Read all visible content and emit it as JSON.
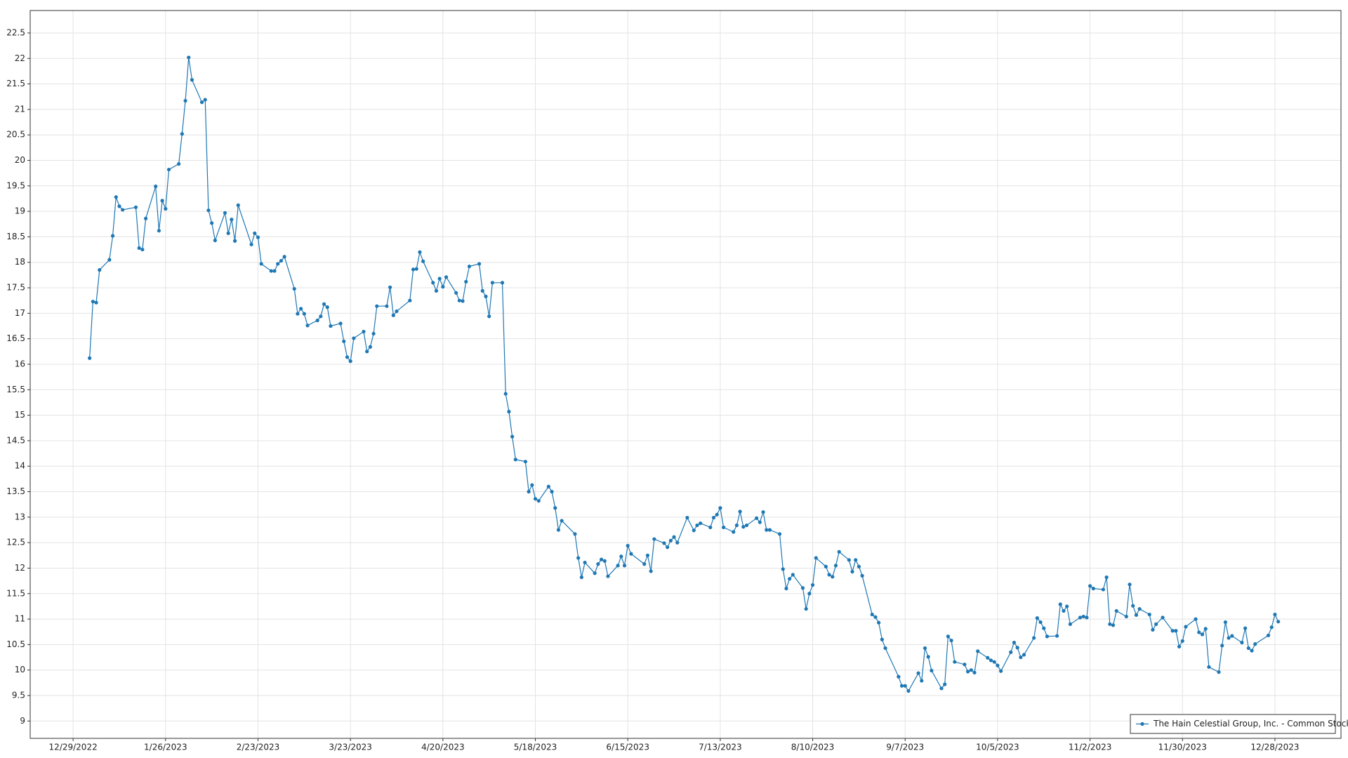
{
  "chart_data": {
    "type": "line",
    "x": [
      "1/3/2023",
      "1/4/2023",
      "1/5/2023",
      "1/6/2023",
      "1/9/2023",
      "1/10/2023",
      "1/11/2023",
      "1/12/2023",
      "1/13/2023",
      "1/17/2023",
      "1/18/2023",
      "1/19/2023",
      "1/20/2023",
      "1/23/2023",
      "1/24/2023",
      "1/25/2023",
      "1/26/2023",
      "1/27/2023",
      "1/30/2023",
      "1/31/2023",
      "2/1/2023",
      "2/2/2023",
      "2/3/2023",
      "2/6/2023",
      "2/7/2023",
      "2/8/2023",
      "2/9/2023",
      "2/10/2023",
      "2/13/2023",
      "2/14/2023",
      "2/15/2023",
      "2/16/2023",
      "2/17/2023",
      "2/21/2023",
      "2/22/2023",
      "2/23/2023",
      "2/24/2023",
      "2/27/2023",
      "2/28/2023",
      "3/1/2023",
      "3/2/2023",
      "3/3/2023",
      "3/6/2023",
      "3/7/2023",
      "3/8/2023",
      "3/9/2023",
      "3/10/2023",
      "3/13/2023",
      "3/14/2023",
      "3/15/2023",
      "3/16/2023",
      "3/17/2023",
      "3/20/2023",
      "3/21/2023",
      "3/22/2023",
      "3/23/2023",
      "3/24/2023",
      "3/27/2023",
      "3/28/2023",
      "3/29/2023",
      "3/30/2023",
      "3/31/2023",
      "4/3/2023",
      "4/4/2023",
      "4/5/2023",
      "4/6/2023",
      "4/10/2023",
      "4/11/2023",
      "4/12/2023",
      "4/13/2023",
      "4/14/2023",
      "4/17/2023",
      "4/18/2023",
      "4/19/2023",
      "4/20/2023",
      "4/21/2023",
      "4/24/2023",
      "4/25/2023",
      "4/26/2023",
      "4/27/2023",
      "4/28/2023",
      "5/1/2023",
      "5/2/2023",
      "5/3/2023",
      "5/4/2023",
      "5/5/2023",
      "5/8/2023",
      "5/9/2023",
      "5/10/2023",
      "5/11/2023",
      "5/12/2023",
      "5/15/2023",
      "5/16/2023",
      "5/17/2023",
      "5/18/2023",
      "5/19/2023",
      "5/22/2023",
      "5/23/2023",
      "5/24/2023",
      "5/25/2023",
      "5/26/2023",
      "5/30/2023",
      "5/31/2023",
      "6/1/2023",
      "6/2/2023",
      "6/5/2023",
      "6/6/2023",
      "6/7/2023",
      "6/8/2023",
      "6/9/2023",
      "6/12/2023",
      "6/13/2023",
      "6/14/2023",
      "6/15/2023",
      "6/16/2023",
      "6/20/2023",
      "6/21/2023",
      "6/22/2023",
      "6/23/2023",
      "6/26/2023",
      "6/27/2023",
      "6/28/2023",
      "6/29/2023",
      "6/30/2023",
      "7/3/2023",
      "7/5/2023",
      "7/6/2023",
      "7/7/2023",
      "7/10/2023",
      "7/11/2023",
      "7/12/2023",
      "7/13/2023",
      "7/14/2023",
      "7/17/2023",
      "7/18/2023",
      "7/19/2023",
      "7/20/2023",
      "7/21/2023",
      "7/24/2023",
      "7/25/2023",
      "7/26/2023",
      "7/27/2023",
      "7/28/2023",
      "7/31/2023",
      "8/1/2023",
      "8/2/2023",
      "8/3/2023",
      "8/4/2023",
      "8/7/2023",
      "8/8/2023",
      "8/9/2023",
      "8/10/2023",
      "8/11/2023",
      "8/14/2023",
      "8/15/2023",
      "8/16/2023",
      "8/17/2023",
      "8/18/2023",
      "8/21/2023",
      "8/22/2023",
      "8/23/2023",
      "8/24/2023",
      "8/25/2023",
      "8/28/2023",
      "8/29/2023",
      "8/30/2023",
      "8/31/2023",
      "9/1/2023",
      "9/5/2023",
      "9/6/2023",
      "9/7/2023",
      "9/8/2023",
      "9/11/2023",
      "9/12/2023",
      "9/13/2023",
      "9/14/2023",
      "9/15/2023",
      "9/18/2023",
      "9/19/2023",
      "9/20/2023",
      "9/21/2023",
      "9/22/2023",
      "9/25/2023",
      "9/26/2023",
      "9/27/2023",
      "9/28/2023",
      "9/29/2023",
      "10/2/2023",
      "10/3/2023",
      "10/4/2023",
      "10/5/2023",
      "10/6/2023",
      "10/9/2023",
      "10/10/2023",
      "10/11/2023",
      "10/12/2023",
      "10/13/2023",
      "10/16/2023",
      "10/17/2023",
      "10/18/2023",
      "10/19/2023",
      "10/20/2023",
      "10/23/2023",
      "10/24/2023",
      "10/25/2023",
      "10/26/2023",
      "10/27/2023",
      "10/30/2023",
      "10/31/2023",
      "11/1/2023",
      "11/2/2023",
      "11/3/2023",
      "11/6/2023",
      "11/7/2023",
      "11/8/2023",
      "11/9/2023",
      "11/10/2023",
      "11/13/2023",
      "11/14/2023",
      "11/15/2023",
      "11/16/2023",
      "11/17/2023",
      "11/20/2023",
      "11/21/2023",
      "11/22/2023",
      "11/24/2023",
      "11/27/2023",
      "11/28/2023",
      "11/29/2023",
      "11/30/2023",
      "12/1/2023",
      "12/4/2023",
      "12/5/2023",
      "12/6/2023",
      "12/7/2023",
      "12/8/2023",
      "12/11/2023",
      "12/12/2023",
      "12/13/2023",
      "12/14/2023",
      "12/15/2023",
      "12/18/2023",
      "12/19/2023",
      "12/20/2023",
      "12/21/2023",
      "12/22/2023",
      "12/26/2023",
      "12/27/2023",
      "12/28/2023",
      "12/29/2023"
    ],
    "series": [
      {
        "name": "The Hain Celestial Group, Inc. - Common Stock",
        "color": "#1f78b4",
        "values": [
          16.12,
          17.23,
          17.21,
          17.85,
          18.05,
          18.52,
          19.28,
          19.1,
          19.03,
          19.08,
          18.28,
          18.25,
          18.86,
          19.49,
          18.62,
          19.21,
          19.05,
          19.82,
          19.93,
          20.52,
          21.17,
          22.02,
          21.58,
          21.14,
          21.19,
          19.02,
          18.77,
          18.43,
          18.97,
          18.57,
          18.84,
          18.42,
          19.12,
          18.35,
          18.57,
          18.49,
          17.97,
          17.83,
          17.83,
          17.97,
          18.03,
          18.11,
          17.48,
          16.99,
          17.09,
          16.99,
          16.76,
          16.86,
          16.94,
          17.18,
          17.12,
          16.75,
          16.8,
          16.45,
          16.14,
          16.06,
          16.51,
          16.64,
          16.25,
          16.34,
          16.6,
          17.14,
          17.14,
          17.51,
          16.96,
          17.04,
          17.25,
          17.86,
          17.87,
          18.2,
          18.02,
          17.6,
          17.44,
          17.68,
          17.52,
          17.71,
          17.4,
          17.25,
          17.24,
          17.62,
          17.92,
          17.97,
          17.44,
          17.33,
          16.94,
          17.6,
          17.6,
          15.42,
          15.07,
          14.58,
          14.13,
          14.09,
          13.5,
          13.63,
          13.36,
          13.32,
          13.6,
          13.5,
          13.18,
          12.75,
          12.93,
          12.67,
          12.2,
          11.82,
          12.11,
          11.9,
          12.08,
          12.17,
          12.14,
          11.84,
          12.05,
          12.23,
          12.05,
          12.44,
          12.28,
          12.08,
          12.25,
          11.94,
          12.57,
          12.49,
          12.41,
          12.54,
          12.61,
          12.5,
          12.99,
          12.74,
          12.84,
          12.88,
          12.8,
          12.99,
          13.05,
          13.18,
          12.8,
          12.71,
          12.84,
          13.11,
          12.81,
          12.84,
          12.98,
          12.9,
          13.1,
          12.75,
          12.75,
          12.67,
          11.98,
          11.6,
          11.79,
          11.87,
          11.61,
          11.2,
          11.5,
          11.67,
          12.2,
          12.03,
          11.87,
          11.83,
          12.05,
          12.32,
          12.16,
          11.93,
          12.16,
          12.03,
          11.85,
          11.09,
          11.04,
          10.93,
          10.6,
          10.43,
          9.87,
          9.69,
          9.69,
          9.59,
          9.94,
          9.79,
          10.43,
          10.26,
          9.99,
          9.64,
          9.72,
          10.66,
          10.58,
          10.16,
          10.11,
          9.97,
          10.0,
          9.95,
          10.37,
          10.24,
          10.19,
          10.16,
          10.09,
          9.98,
          10.35,
          10.54,
          10.44,
          10.25,
          10.3,
          10.63,
          11.02,
          10.94,
          10.82,
          10.66,
          10.67,
          11.29,
          11.16,
          11.25,
          10.9,
          11.03,
          11.05,
          11.03,
          11.65,
          11.6,
          11.58,
          11.82,
          10.9,
          10.88,
          11.16,
          11.05,
          11.68,
          11.26,
          11.08,
          11.2,
          11.09,
          10.79,
          10.9,
          11.03,
          10.77,
          10.77,
          10.46,
          10.57,
          10.85,
          11.0,
          10.74,
          10.7,
          10.81,
          10.06,
          9.96,
          10.48,
          10.94,
          10.63,
          10.67,
          10.54,
          10.82,
          10.43,
          10.38,
          10.51,
          10.68,
          10.84,
          11.09,
          10.95
        ]
      }
    ],
    "xlim": [
      "12/16/2022",
      "1/17/2024"
    ],
    "xticks": [
      "12/29/2022",
      "1/26/2023",
      "2/23/2023",
      "3/23/2023",
      "4/20/2023",
      "5/18/2023",
      "6/15/2023",
      "7/13/2023",
      "8/10/2023",
      "9/7/2023",
      "10/5/2023",
      "11/2/2023",
      "11/30/2023",
      "12/28/2023"
    ],
    "ylim": [
      8.66,
      22.94
    ],
    "yticks": [
      9,
      9.5,
      10,
      10.5,
      11,
      11.5,
      12,
      12.5,
      13,
      13.5,
      14,
      14.5,
      15,
      15.5,
      16,
      16.5,
      17,
      17.5,
      18,
      18.5,
      19,
      19.5,
      20,
      20.5,
      21,
      21.5,
      22,
      22.5
    ],
    "grid": true,
    "legend": "lower right",
    "markers": true
  }
}
